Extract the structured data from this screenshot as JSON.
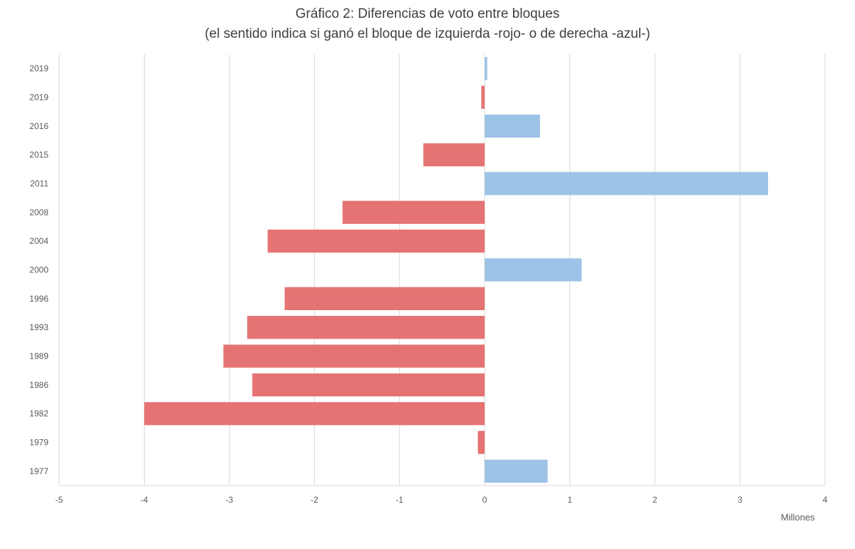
{
  "chart_data": {
    "type": "bar",
    "orientation": "horizontal",
    "title": "Gráfico 2: Diferencias de voto entre bloques",
    "subtitle": "(el sentido indica si ganó el bloque de izquierda -rojo- o de derecha -azul-)",
    "xlabel": "Millones",
    "xlim": [
      -5,
      4
    ],
    "xticks": [
      "-5",
      "-4",
      "-3",
      "-2",
      "-1",
      "0",
      "1",
      "2",
      "3",
      "4"
    ],
    "grid": true,
    "categories": [
      "2019",
      "2019",
      "2016",
      "2015",
      "2011",
      "2008",
      "2004",
      "2000",
      "1996",
      "1993",
      "1989",
      "1986",
      "1982",
      "1979",
      "1977"
    ],
    "values": [
      0.03,
      -0.04,
      0.65,
      -0.72,
      3.33,
      -1.67,
      -2.55,
      1.14,
      -2.35,
      -2.79,
      -3.07,
      -2.73,
      -4.0,
      -0.08,
      0.74
    ],
    "colors": {
      "positive": "#9dc3e6",
      "negative": "#e57373",
      "grid": "#d9d9d9"
    }
  }
}
